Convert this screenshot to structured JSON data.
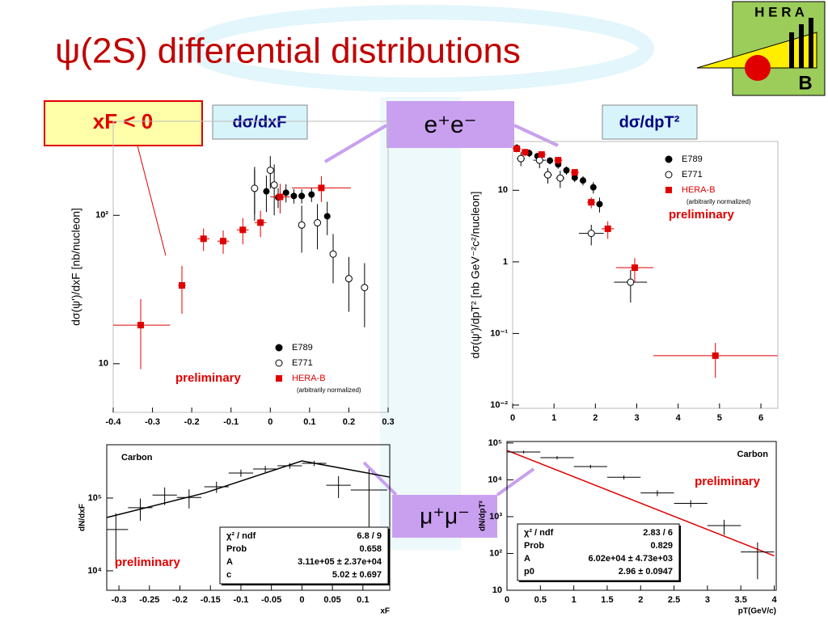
{
  "title": "ψ(2S) differential distributions",
  "logo": {
    "top": "H E R A",
    "bottom": "B"
  },
  "labels": {
    "xf_cut": "xF < 0",
    "dxf": "dσ/dxF",
    "ee": "e⁺e⁻",
    "dpt": "dσ/dpT²",
    "mumu": "μ⁺μ⁻"
  },
  "chart_data": [
    {
      "type": "scatter",
      "log_y": true,
      "legend": "lower right",
      "xlim": [
        -0.4,
        0.3
      ],
      "ylim": [
        4.7,
        430
      ],
      "xticks": [
        -0.4,
        -0.3,
        -0.2,
        -0.1,
        0,
        0.1,
        0.2,
        0.3
      ],
      "yticks": [
        10,
        {
          "value": 100,
          "label": "10²"
        }
      ],
      "ylabel": "dσ(ψ')/dxF  [nb/nucleon]",
      "annotation": "preliminary",
      "legend_note": "(arbitrarily normalized)",
      "series": [
        {
          "name": "E789",
          "marker": "circle-filled",
          "color": "#000000",
          "x": [
            -0.04,
            -0.01,
            0.02,
            0.04,
            0.06,
            0.08,
            0.105,
            0.145
          ],
          "values": [
            152,
            145,
            132,
            142,
            135,
            135,
            138,
            98.5
          ],
          "yerr": [
            50,
            40,
            20,
            20,
            15,
            15,
            15,
            25
          ]
        },
        {
          "name": "E771",
          "marker": "circle-open",
          "color": "#000000",
          "x": [
            -0.04,
            0.0,
            0.01,
            0.08,
            0.12,
            0.16,
            0.2,
            0.24
          ],
          "values": [
            152,
            201,
            160,
            86,
            89,
            54.8,
            37.4,
            32.6
          ],
          "yerr": [
            60,
            50,
            60,
            30,
            30,
            20,
            15,
            15
          ]
        },
        {
          "name": "HERA-B",
          "marker": "square",
          "color": "#e00000",
          "x": [
            -0.33,
            -0.225,
            -0.17,
            -0.12,
            -0.07,
            -0.025,
            0.025,
            0.13
          ],
          "values": [
            18.2,
            33.7,
            69.5,
            67,
            79.8,
            89.3,
            133,
            153
          ],
          "yerr": [
            9,
            12,
            12,
            12,
            16,
            18,
            30,
            30
          ],
          "xerr": [
            0.075,
            0.01,
            0.015,
            0.015,
            0.015,
            0.015,
            0.025,
            0.075
          ]
        }
      ]
    },
    {
      "type": "scatter",
      "log_y": true,
      "legend": "upper right",
      "xlim": [
        0,
        6.41
      ],
      "ylim": [
        0.009,
        48
      ],
      "xticks": [
        0,
        1,
        2,
        3,
        4,
        5,
        6
      ],
      "yticks": [
        {
          "value": 0.01,
          "label": "10⁻²"
        },
        {
          "value": 0.1,
          "label": "10⁻¹"
        },
        1,
        10
      ],
      "ylabel": "dσ(ψ')/dpT²  [nb GeV⁻²c²/nucleon]",
      "annotation": "preliminary",
      "legend_note": "(arbitrarily normalized)",
      "series": [
        {
          "name": "E789",
          "marker": "circle-filled",
          "color": "#000000",
          "x": [
            0.1,
            0.4,
            0.6,
            0.9,
            1.1,
            1.3,
            1.5,
            1.7,
            1.95,
            2.1
          ],
          "values": [
            39,
            33,
            30,
            26,
            23,
            19,
            15,
            13.7,
            11,
            6.4
          ],
          "yerr": [
            5,
            4,
            3,
            3,
            3,
            2.5,
            2,
            2,
            2,
            1.5
          ]
        },
        {
          "name": "E771",
          "marker": "circle-open",
          "color": "#000000",
          "x": [
            0.2,
            0.65,
            0.85,
            1.15,
            1.9,
            2.85
          ],
          "values": [
            27.7,
            26.3,
            16.4,
            14.8,
            2.5,
            0.52
          ],
          "yerr": [
            6,
            6,
            4,
            4,
            0.8,
            0.25
          ],
          "xerr": [
            0.1,
            0.15,
            0.1,
            0.1,
            0.3,
            0.4
          ]
        },
        {
          "name": "HERA-B",
          "marker": "square",
          "color": "#e00000",
          "x": [
            0.1,
            0.3,
            0.7,
            1.1,
            1.5,
            1.9,
            2.3,
            2.95,
            4.9
          ],
          "values": [
            38,
            34,
            31.6,
            26.3,
            17.8,
            6.8,
            2.9,
            0.83,
            0.049
          ],
          "yerr": [
            4,
            4,
            3,
            3,
            2,
            1.2,
            0.8,
            0.3,
            0.025
          ],
          "xerr": [
            0.1,
            0.1,
            0.1,
            0.1,
            0.1,
            0.1,
            0.15,
            0.45,
            1.5
          ]
        }
      ]
    },
    {
      "type": "scatter",
      "log_y": true,
      "xlim": [
        -0.32,
        0.144
      ],
      "ylim": [
        5400,
        541000
      ],
      "xticks": [
        -0.3,
        -0.25,
        -0.2,
        -0.15,
        -0.1,
        -0.05,
        0,
        0.05,
        0.1
      ],
      "yticks": [
        {
          "value": 10000,
          "label": "10⁴"
        },
        {
          "value": 100000,
          "label": "10⁵"
        }
      ],
      "title": "Carbon",
      "xlabel": "xF",
      "ylabel": "dN/dxF",
      "annotation": "preliminary",
      "series": [
        {
          "marker": "none",
          "color": "#000000",
          "x": [
            -0.305,
            -0.265,
            -0.225,
            -0.185,
            -0.14,
            -0.1,
            -0.06,
            -0.02,
            0.02,
            0.06,
            0.11
          ],
          "values": [
            36900,
            73600,
            110000,
            102000,
            143000,
            221000,
            251000,
            278000,
            300000,
            150000,
            129000
          ],
          "yerr": [
            25000,
            25000,
            30000,
            30000,
            25000,
            25000,
            25000,
            25000,
            25000,
            50000,
            120000
          ],
          "xerr": [
            0.02,
            0.02,
            0.02,
            0.02,
            0.02,
            0.02,
            0.02,
            0.02,
            0.02,
            0.02,
            0.03
          ]
        }
      ],
      "fit": {
        "color": "#000000",
        "x": [
          -0.32,
          -0.16,
          0,
          0.144
        ],
        "values": [
          54000,
          117000,
          324000,
          194000
        ]
      },
      "stats": [
        [
          "χ² / ndf",
          "6.8 / 9"
        ],
        [
          "Prob",
          "0.658"
        ],
        [
          "A",
          "3.11e+05 ± 2.37e+04"
        ],
        [
          "c",
          "5.02 ± 0.697"
        ]
      ]
    },
    {
      "type": "scatter",
      "log_y": true,
      "xlim": [
        0,
        4.03
      ],
      "ylim": [
        10,
        110000
      ],
      "xticks": [
        0,
        0.5,
        1,
        1.5,
        2,
        2.5,
        3,
        3.5,
        4
      ],
      "yticks": [
        10,
        {
          "value": 100,
          "label": "10²"
        },
        {
          "value": 1000,
          "label": "10³"
        },
        {
          "value": 10000,
          "label": "10⁴"
        },
        {
          "value": 100000,
          "label": "10⁵"
        }
      ],
      "title": "Carbon",
      "xlabel": "pT(GeV/c)",
      "ylabel": "dN/dpT²",
      "annotation": "preliminary",
      "series": [
        {
          "marker": "none",
          "color": "#000000",
          "x": [
            0.25,
            0.75,
            1.25,
            1.75,
            2.25,
            2.75,
            3.25,
            3.75
          ],
          "values": [
            57000,
            40000,
            23000,
            11700,
            4400,
            2300,
            570,
            110
          ],
          "yerr": [
            5000,
            4000,
            2500,
            1500,
            800,
            500,
            250,
            90
          ],
          "xerr": [
            0.25,
            0.25,
            0.25,
            0.25,
            0.25,
            0.25,
            0.25,
            0.25
          ]
        }
      ],
      "fit": {
        "color": "#e00000",
        "x": [
          0,
          4
        ],
        "values": [
          63000,
          86
        ]
      },
      "stats": [
        [
          "χ² / ndf",
          "2.83 / 6"
        ],
        [
          "Prob",
          "0.829"
        ],
        [
          "A",
          "6.02e+04 ± 4.73e+03"
        ],
        [
          "p0",
          "2.96 ± 0.0947"
        ]
      ]
    }
  ]
}
